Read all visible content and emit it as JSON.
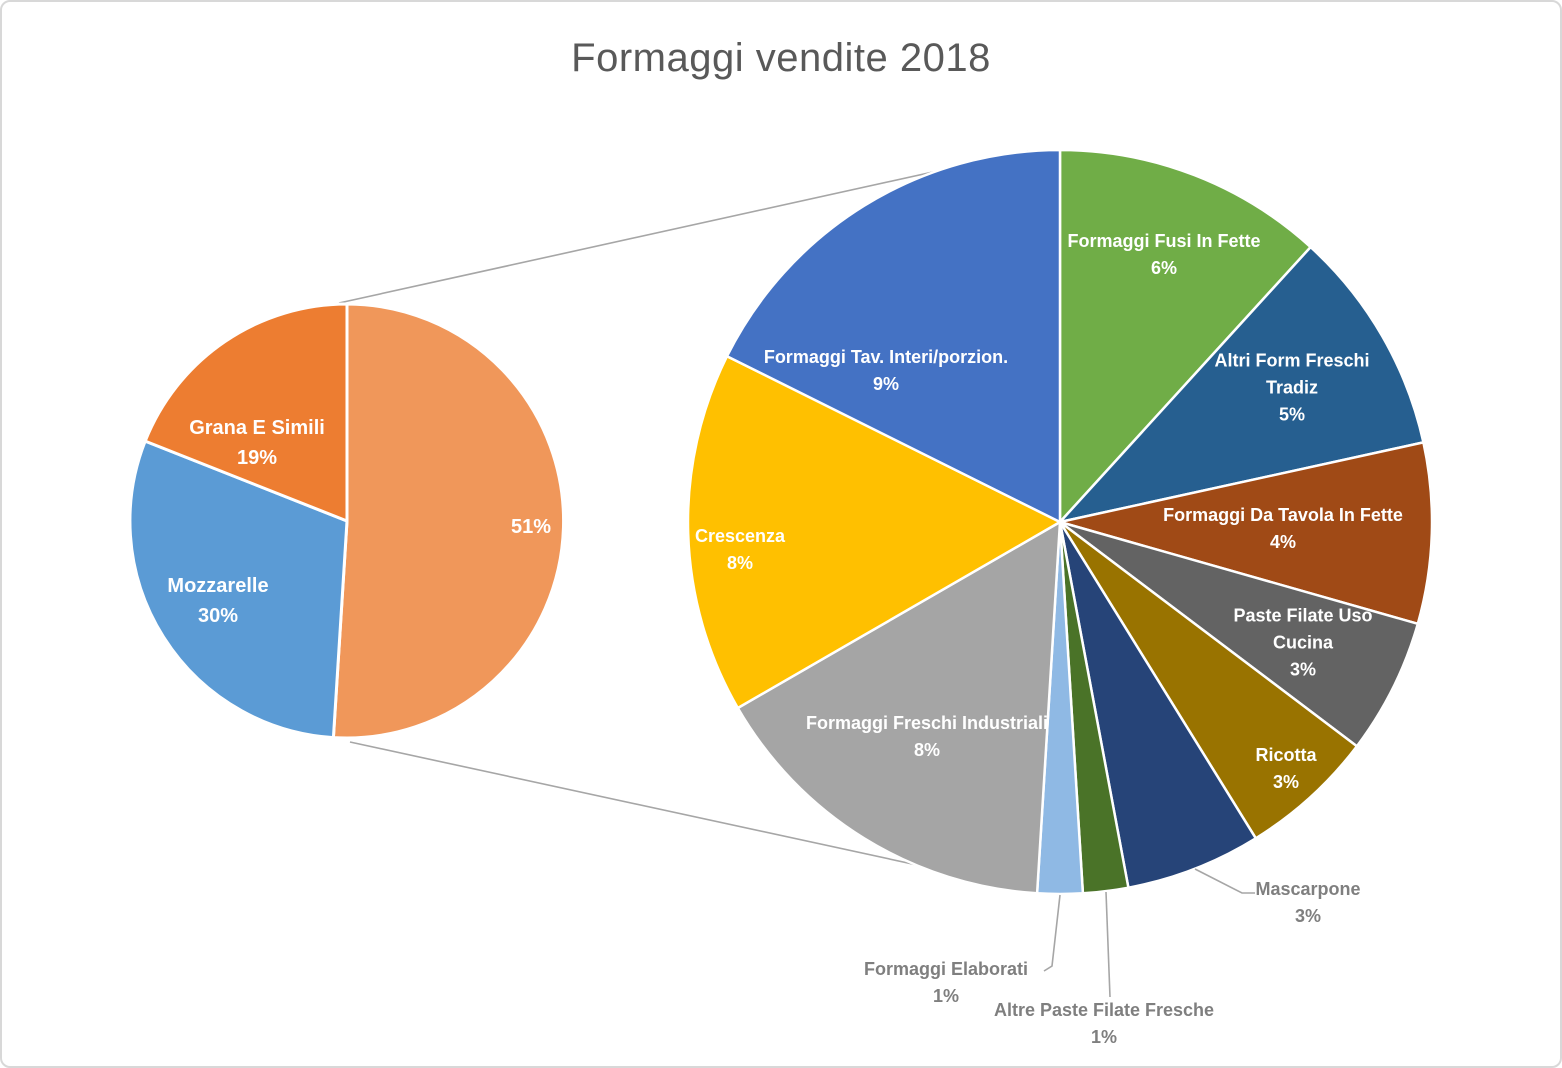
{
  "window": {
    "background": "#FFFFFF",
    "border_color": "#D8D8D8"
  },
  "chart_data": {
    "type": "pie",
    "variant": "pie-of-pie",
    "title": "Formaggi vendite 2018",
    "title_color": "#595959",
    "legend": "none",
    "units": "percent",
    "inside_label_color": "#FFFFFF",
    "outside_label_color": "#7F7F7F",
    "leader_line_color": "#A6A6A6",
    "connector_line_color": "#A6A6A6",
    "primary_pie": {
      "slices": [
        {
          "label": "",
          "pct_label": "51%",
          "value": 51,
          "color": "#F0975A",
          "expands_to_secondary": true
        },
        {
          "label": "Mozzarelle",
          "pct_label": "30%",
          "value": 30,
          "color": "#5B9BD5"
        },
        {
          "label": "Grana E Simili",
          "pct_label": "19%",
          "value": 19,
          "color": "#ED7D31"
        }
      ]
    },
    "secondary_pie": {
      "represents_pct_label": "51%",
      "slices": [
        {
          "label": "Formaggi Fusi In Fette",
          "pct_label": "6%",
          "value": 6,
          "color": "#70AD47"
        },
        {
          "label": "Altri Form Freschi Tradiz",
          "pct_label": "5%",
          "value": 5,
          "color": "#265F90"
        },
        {
          "label": "Formaggi Da Tavola In Fette",
          "pct_label": "4%",
          "value": 4,
          "color": "#A04A16"
        },
        {
          "label": "Paste Filate Uso Cucina",
          "pct_label": "3%",
          "value": 3,
          "color": "#636363"
        },
        {
          "label": "Ricotta",
          "pct_label": "3%",
          "value": 3,
          "color": "#997300"
        },
        {
          "label": "Mascarpone",
          "pct_label": "3%",
          "value": 3,
          "color": "#264478",
          "label_outside": true
        },
        {
          "label": "Altre Paste Filate Fresche",
          "pct_label": "1%",
          "value": 1,
          "color": "#4A7328",
          "label_outside": true
        },
        {
          "label": "Formaggi Elaborati",
          "pct_label": "1%",
          "value": 1,
          "color": "#8FB9E4",
          "label_outside": true
        },
        {
          "label": "Formaggi Freschi Industriali",
          "pct_label": "8%",
          "value": 8,
          "color": "#A5A5A5"
        },
        {
          "label": "Crescenza",
          "pct_label": "8%",
          "value": 8,
          "color": "#FFC000"
        },
        {
          "label": "Formaggi Tav. Interi/porzion.",
          "pct_label": "9%",
          "value": 9,
          "color": "#4472C4"
        }
      ]
    }
  }
}
